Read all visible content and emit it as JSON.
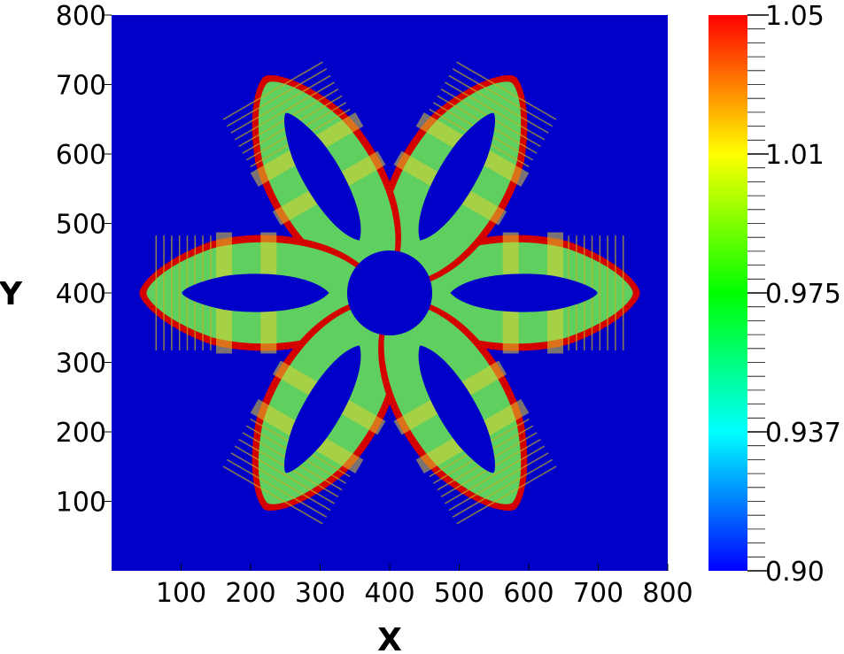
{
  "chart_data": {
    "type": "heatmap",
    "title": "",
    "xlabel": "X",
    "ylabel": "Y",
    "xlim": [
      0,
      800
    ],
    "ylim": [
      0,
      800
    ],
    "x_ticks": [
      100,
      200,
      300,
      400,
      500,
      600,
      700,
      800
    ],
    "y_ticks": [
      100,
      200,
      300,
      400,
      500,
      600,
      700,
      800
    ],
    "background_value": 0.9,
    "shape": {
      "kind": "six-petal flower",
      "center": [
        400,
        400
      ],
      "petals": 6,
      "outer_radius": 360,
      "edge_value": 1.05,
      "band_value": 0.975
    },
    "colorbar": {
      "min": 0.9,
      "max": 1.05,
      "tick_labels": [
        "1.05",
        "1.01",
        "0.975",
        "0.937",
        "0.90"
      ],
      "tick_values": [
        1.05,
        1.0125,
        0.975,
        0.9375,
        0.9
      ],
      "colors": [
        "#0000ff",
        "#00ffff",
        "#00ff00",
        "#ffff00",
        "#ff0000"
      ]
    },
    "colors": {
      "background": "#0000c8",
      "edge": "#d40000",
      "band": "#5fd05f",
      "hot": "#e0d030"
    }
  }
}
